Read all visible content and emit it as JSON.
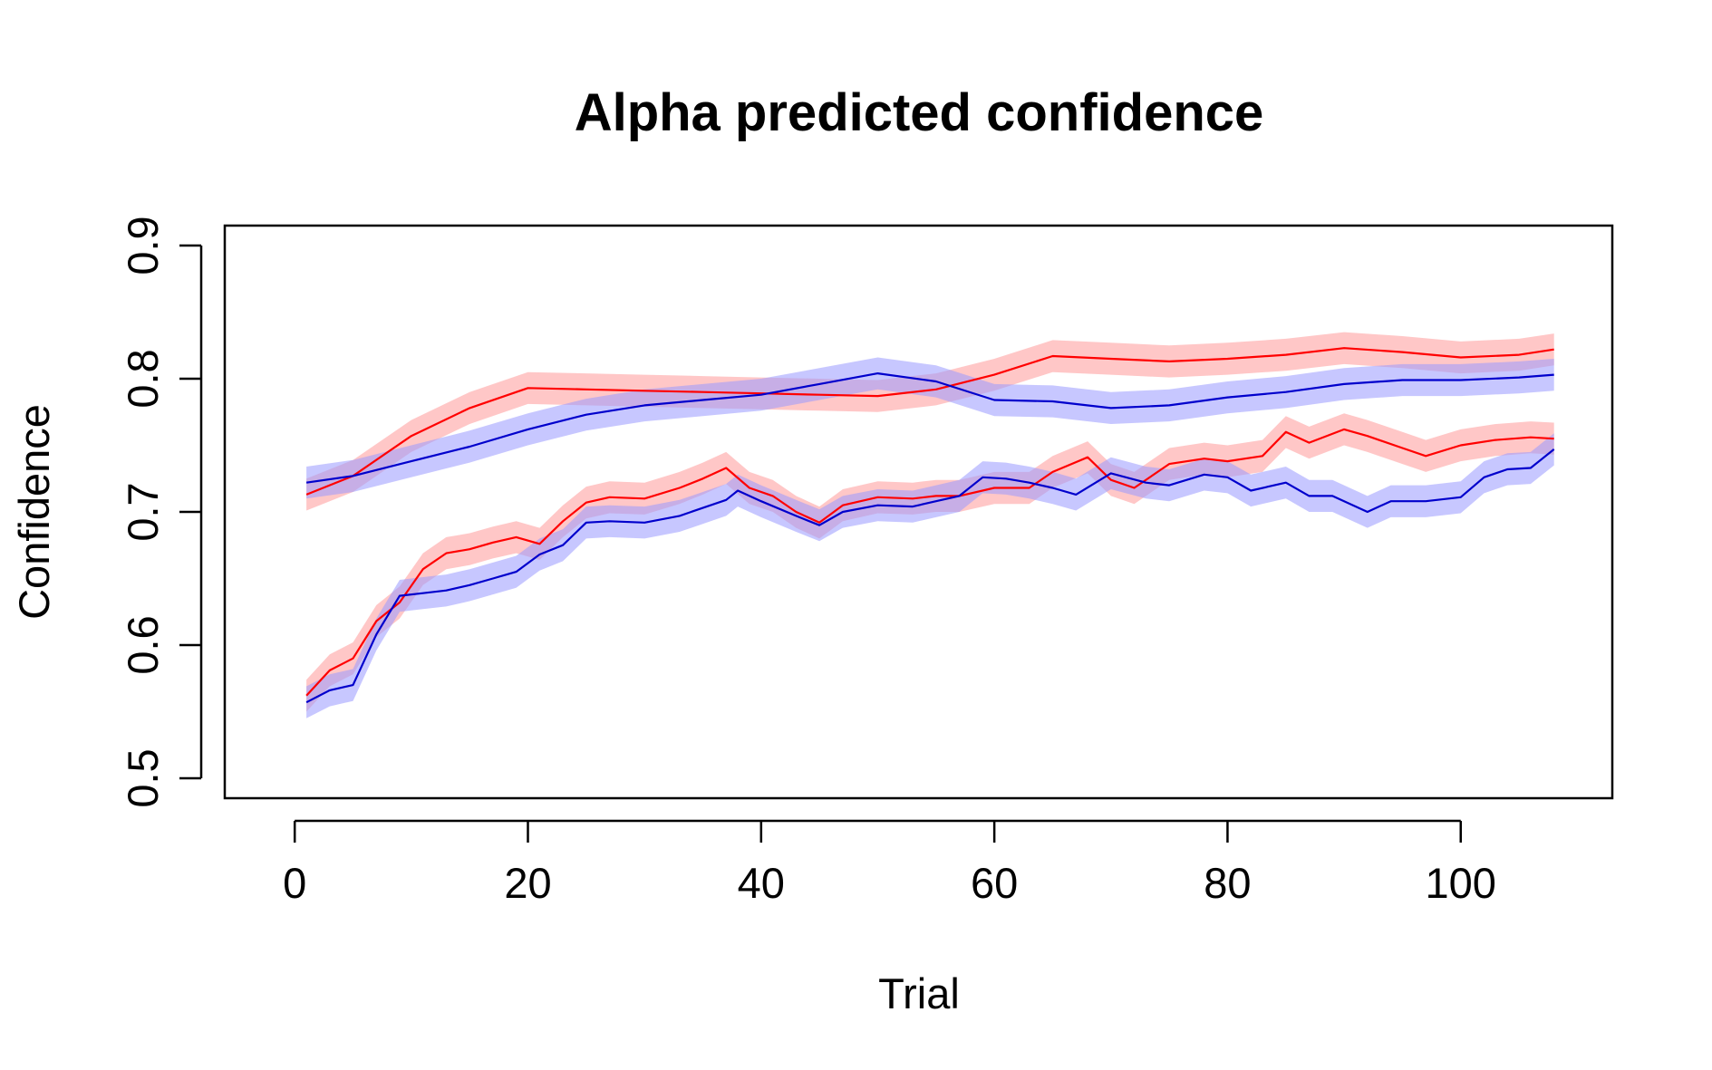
{
  "chart_data": {
    "type": "line",
    "title": "Alpha predicted confidence",
    "xlabel": "Trial",
    "ylabel": "Confidence",
    "xlim": [
      -6,
      113
    ],
    "ylim": [
      0.485,
      0.915
    ],
    "xticks": [
      0,
      20,
      40,
      60,
      80,
      100
    ],
    "yticks": [
      0.5,
      0.6,
      0.7,
      0.8,
      0.9
    ],
    "xtick_labels": [
      "0",
      "20",
      "40",
      "60",
      "80",
      "100"
    ],
    "ytick_labels": [
      "0.5",
      "0.6",
      "0.7",
      "0.8",
      "0.9"
    ],
    "grid": false,
    "legend": "none",
    "band_half_width": 0.012,
    "series": [
      {
        "color": "#ff0000",
        "band_color": "#ff9999",
        "x": [
          1,
          5,
          10,
          15,
          20,
          25,
          30,
          35,
          40,
          45,
          50,
          55,
          60,
          65,
          70,
          75,
          80,
          85,
          90,
          95,
          100,
          105,
          108
        ],
        "values": [
          0.713,
          0.727,
          0.757,
          0.778,
          0.793,
          0.792,
          0.791,
          0.79,
          0.789,
          0.788,
          0.787,
          0.792,
          0.803,
          0.817,
          0.815,
          0.813,
          0.815,
          0.818,
          0.823,
          0.82,
          0.816,
          0.818,
          0.822
        ]
      },
      {
        "color": "#0000cc",
        "band_color": "#9999ff",
        "x": [
          1,
          5,
          10,
          15,
          20,
          25,
          30,
          35,
          40,
          45,
          50,
          55,
          60,
          65,
          70,
          75,
          80,
          85,
          90,
          95,
          100,
          105,
          108
        ],
        "values": [
          0.722,
          0.727,
          0.738,
          0.749,
          0.762,
          0.773,
          0.78,
          0.784,
          0.788,
          0.796,
          0.804,
          0.798,
          0.784,
          0.783,
          0.778,
          0.78,
          0.786,
          0.79,
          0.796,
          0.799,
          0.799,
          0.801,
          0.803
        ]
      },
      {
        "color": "#ff0000",
        "band_color": "#ff9999",
        "x": [
          1,
          3,
          5,
          7,
          9,
          11,
          13,
          15,
          17,
          19,
          21,
          23,
          25,
          27,
          30,
          33,
          35,
          37,
          39,
          41,
          43,
          45,
          47,
          50,
          53,
          55,
          57,
          60,
          63,
          65,
          68,
          70,
          72,
          75,
          78,
          80,
          83,
          85,
          87,
          90,
          92,
          95,
          97,
          100,
          103,
          106,
          108
        ],
        "values": [
          0.562,
          0.581,
          0.59,
          0.618,
          0.632,
          0.657,
          0.669,
          0.672,
          0.677,
          0.681,
          0.676,
          0.693,
          0.707,
          0.711,
          0.71,
          0.718,
          0.725,
          0.733,
          0.718,
          0.712,
          0.7,
          0.692,
          0.705,
          0.711,
          0.71,
          0.712,
          0.712,
          0.718,
          0.718,
          0.73,
          0.741,
          0.724,
          0.718,
          0.736,
          0.74,
          0.738,
          0.742,
          0.76,
          0.752,
          0.762,
          0.757,
          0.748,
          0.742,
          0.75,
          0.754,
          0.756,
          0.755
        ]
      },
      {
        "color": "#0000cc",
        "band_color": "#9999ff",
        "x": [
          1,
          3,
          5,
          7,
          9,
          11,
          13,
          15,
          17,
          19,
          21,
          23,
          25,
          27,
          30,
          33,
          35,
          37,
          38,
          40,
          43,
          45,
          47,
          50,
          53,
          55,
          57,
          59,
          61,
          63,
          65,
          67,
          70,
          73,
          75,
          78,
          80,
          82,
          85,
          87,
          89,
          92,
          94,
          97,
          100,
          102,
          104,
          106,
          108
        ],
        "values": [
          0.557,
          0.566,
          0.57,
          0.608,
          0.637,
          0.639,
          0.641,
          0.645,
          0.65,
          0.655,
          0.668,
          0.675,
          0.692,
          0.693,
          0.692,
          0.697,
          0.703,
          0.709,
          0.716,
          0.708,
          0.697,
          0.69,
          0.7,
          0.705,
          0.704,
          0.708,
          0.712,
          0.726,
          0.725,
          0.722,
          0.718,
          0.713,
          0.729,
          0.722,
          0.72,
          0.728,
          0.726,
          0.716,
          0.722,
          0.712,
          0.712,
          0.7,
          0.708,
          0.708,
          0.711,
          0.726,
          0.732,
          0.733,
          0.747
        ]
      }
    ]
  }
}
